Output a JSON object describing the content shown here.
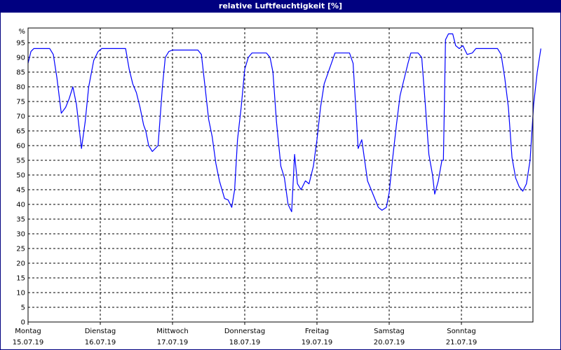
{
  "chart_data": {
    "type": "line",
    "title": "relative Luftfeuchtigkeit [%]",
    "ylabel": "%",
    "ylim": [
      0,
      100
    ],
    "y_ticks": [
      0,
      5,
      10,
      15,
      20,
      25,
      30,
      35,
      40,
      45,
      50,
      55,
      60,
      65,
      70,
      75,
      80,
      85,
      90,
      95
    ],
    "xlim": [
      0,
      7
    ],
    "grid": true,
    "x_tick_labels": [
      {
        "day": "Montag",
        "date": "15.07.19",
        "x": 0
      },
      {
        "day": "Dienstag",
        "date": "16.07.19",
        "x": 1
      },
      {
        "day": "Mittwoch",
        "date": "17.07.19",
        "x": 2
      },
      {
        "day": "Donnerstag",
        "date": "18.07.19",
        "x": 3
      },
      {
        "day": "Freitag",
        "date": "19.07.19",
        "x": 4
      },
      {
        "day": "Samstag",
        "date": "20.07.19",
        "x": 5
      },
      {
        "day": "Sonntag",
        "date": "21.07.19",
        "x": 6
      }
    ],
    "series": [
      {
        "color": "#0000ff",
        "points": [
          [
            0.0,
            88
          ],
          [
            0.04,
            92
          ],
          [
            0.08,
            93
          ],
          [
            0.3,
            93
          ],
          [
            0.35,
            91
          ],
          [
            0.4,
            83
          ],
          [
            0.46,
            71
          ],
          [
            0.52,
            73
          ],
          [
            0.57,
            76
          ],
          [
            0.62,
            80
          ],
          [
            0.67,
            74
          ],
          [
            0.74,
            59
          ],
          [
            0.79,
            68
          ],
          [
            0.84,
            80
          ],
          [
            0.91,
            89
          ],
          [
            0.97,
            92
          ],
          [
            1.02,
            93
          ],
          [
            1.35,
            93
          ],
          [
            1.4,
            86
          ],
          [
            1.45,
            81
          ],
          [
            1.5,
            78
          ],
          [
            1.55,
            73
          ],
          [
            1.6,
            67
          ],
          [
            1.63,
            65
          ],
          [
            1.67,
            60
          ],
          [
            1.72,
            58
          ],
          [
            1.8,
            60
          ],
          [
            1.86,
            80
          ],
          [
            1.9,
            90
          ],
          [
            1.95,
            92
          ],
          [
            2.0,
            92.5
          ],
          [
            2.35,
            92.5
          ],
          [
            2.4,
            91
          ],
          [
            2.45,
            80
          ],
          [
            2.5,
            69
          ],
          [
            2.55,
            63
          ],
          [
            2.6,
            54
          ],
          [
            2.65,
            48
          ],
          [
            2.72,
            42
          ],
          [
            2.77,
            41.5
          ],
          [
            2.82,
            39
          ],
          [
            2.86,
            45
          ],
          [
            2.9,
            62
          ],
          [
            2.95,
            73
          ],
          [
            3.0,
            86
          ],
          [
            3.05,
            90
          ],
          [
            3.1,
            91.5
          ],
          [
            3.3,
            91.5
          ],
          [
            3.35,
            90
          ],
          [
            3.39,
            85
          ],
          [
            3.44,
            68
          ],
          [
            3.5,
            53
          ],
          [
            3.55,
            49
          ],
          [
            3.6,
            40
          ],
          [
            3.65,
            37.5
          ],
          [
            3.69,
            57
          ],
          [
            3.73,
            47
          ],
          [
            3.78,
            45
          ],
          [
            3.84,
            48
          ],
          [
            3.89,
            47
          ],
          [
            3.95,
            53
          ],
          [
            4.0,
            62
          ],
          [
            4.05,
            73
          ],
          [
            4.1,
            81
          ],
          [
            4.2,
            88
          ],
          [
            4.25,
            91.5
          ],
          [
            4.45,
            91.5
          ],
          [
            4.5,
            88
          ],
          [
            4.54,
            72
          ],
          [
            4.57,
            59
          ],
          [
            4.62,
            62
          ],
          [
            4.66,
            55
          ],
          [
            4.7,
            48
          ],
          [
            4.75,
            45
          ],
          [
            4.8,
            42
          ],
          [
            4.85,
            39
          ],
          [
            4.9,
            38
          ],
          [
            4.96,
            39
          ],
          [
            5.0,
            44
          ],
          [
            5.05,
            56
          ],
          [
            5.1,
            67
          ],
          [
            5.15,
            77
          ],
          [
            5.2,
            82
          ],
          [
            5.26,
            88
          ],
          [
            5.3,
            91.5
          ],
          [
            5.4,
            91.5
          ],
          [
            5.45,
            90
          ],
          [
            5.5,
            74
          ],
          [
            5.55,
            57
          ],
          [
            5.6,
            50
          ],
          [
            5.63,
            43.5
          ],
          [
            5.68,
            48
          ],
          [
            5.73,
            55
          ],
          [
            5.75,
            55
          ],
          [
            5.78,
            96
          ],
          [
            5.82,
            98
          ],
          [
            5.88,
            98
          ],
          [
            5.92,
            94
          ],
          [
            5.97,
            93
          ],
          [
            6.02,
            94
          ],
          [
            6.08,
            91
          ],
          [
            6.15,
            91.5
          ],
          [
            6.2,
            93
          ],
          [
            6.5,
            93
          ],
          [
            6.55,
            91
          ],
          [
            6.6,
            83
          ],
          [
            6.65,
            73
          ],
          [
            6.7,
            56
          ],
          [
            6.75,
            49
          ],
          [
            6.8,
            46
          ],
          [
            6.85,
            44.5
          ],
          [
            6.9,
            47
          ],
          [
            6.95,
            55
          ],
          [
            7.0,
            74
          ],
          [
            7.05,
            85
          ],
          [
            7.1,
            93
          ]
        ]
      }
    ]
  }
}
